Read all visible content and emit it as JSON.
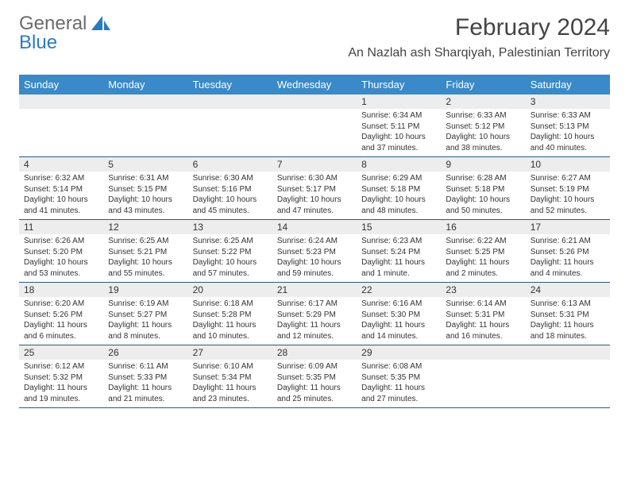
{
  "logo": {
    "text1": "General",
    "text2": "Blue"
  },
  "title": "February 2024",
  "location": "An Nazlah ash Sharqiyah, Palestinian Territory",
  "colors": {
    "header_bg": "#3a89c9",
    "header_text": "#ffffff",
    "date_bg": "#ededed",
    "border": "#2d5a7a",
    "logo_gray": "#6b6b6b",
    "logo_blue": "#2b7bbf"
  },
  "day_names": [
    "Sunday",
    "Monday",
    "Tuesday",
    "Wednesday",
    "Thursday",
    "Friday",
    "Saturday"
  ],
  "weeks": [
    [
      null,
      null,
      null,
      null,
      {
        "d": "1",
        "sr": "6:34 AM",
        "ss": "5:11 PM",
        "dl": "10 hours and 37 minutes."
      },
      {
        "d": "2",
        "sr": "6:33 AM",
        "ss": "5:12 PM",
        "dl": "10 hours and 38 minutes."
      },
      {
        "d": "3",
        "sr": "6:33 AM",
        "ss": "5:13 PM",
        "dl": "10 hours and 40 minutes."
      }
    ],
    [
      {
        "d": "4",
        "sr": "6:32 AM",
        "ss": "5:14 PM",
        "dl": "10 hours and 41 minutes."
      },
      {
        "d": "5",
        "sr": "6:31 AM",
        "ss": "5:15 PM",
        "dl": "10 hours and 43 minutes."
      },
      {
        "d": "6",
        "sr": "6:30 AM",
        "ss": "5:16 PM",
        "dl": "10 hours and 45 minutes."
      },
      {
        "d": "7",
        "sr": "6:30 AM",
        "ss": "5:17 PM",
        "dl": "10 hours and 47 minutes."
      },
      {
        "d": "8",
        "sr": "6:29 AM",
        "ss": "5:18 PM",
        "dl": "10 hours and 48 minutes."
      },
      {
        "d": "9",
        "sr": "6:28 AM",
        "ss": "5:18 PM",
        "dl": "10 hours and 50 minutes."
      },
      {
        "d": "10",
        "sr": "6:27 AM",
        "ss": "5:19 PM",
        "dl": "10 hours and 52 minutes."
      }
    ],
    [
      {
        "d": "11",
        "sr": "6:26 AM",
        "ss": "5:20 PM",
        "dl": "10 hours and 53 minutes."
      },
      {
        "d": "12",
        "sr": "6:25 AM",
        "ss": "5:21 PM",
        "dl": "10 hours and 55 minutes."
      },
      {
        "d": "13",
        "sr": "6:25 AM",
        "ss": "5:22 PM",
        "dl": "10 hours and 57 minutes."
      },
      {
        "d": "14",
        "sr": "6:24 AM",
        "ss": "5:23 PM",
        "dl": "10 hours and 59 minutes."
      },
      {
        "d": "15",
        "sr": "6:23 AM",
        "ss": "5:24 PM",
        "dl": "11 hours and 1 minute."
      },
      {
        "d": "16",
        "sr": "6:22 AM",
        "ss": "5:25 PM",
        "dl": "11 hours and 2 minutes."
      },
      {
        "d": "17",
        "sr": "6:21 AM",
        "ss": "5:26 PM",
        "dl": "11 hours and 4 minutes."
      }
    ],
    [
      {
        "d": "18",
        "sr": "6:20 AM",
        "ss": "5:26 PM",
        "dl": "11 hours and 6 minutes."
      },
      {
        "d": "19",
        "sr": "6:19 AM",
        "ss": "5:27 PM",
        "dl": "11 hours and 8 minutes."
      },
      {
        "d": "20",
        "sr": "6:18 AM",
        "ss": "5:28 PM",
        "dl": "11 hours and 10 minutes."
      },
      {
        "d": "21",
        "sr": "6:17 AM",
        "ss": "5:29 PM",
        "dl": "11 hours and 12 minutes."
      },
      {
        "d": "22",
        "sr": "6:16 AM",
        "ss": "5:30 PM",
        "dl": "11 hours and 14 minutes."
      },
      {
        "d": "23",
        "sr": "6:14 AM",
        "ss": "5:31 PM",
        "dl": "11 hours and 16 minutes."
      },
      {
        "d": "24",
        "sr": "6:13 AM",
        "ss": "5:31 PM",
        "dl": "11 hours and 18 minutes."
      }
    ],
    [
      {
        "d": "25",
        "sr": "6:12 AM",
        "ss": "5:32 PM",
        "dl": "11 hours and 19 minutes."
      },
      {
        "d": "26",
        "sr": "6:11 AM",
        "ss": "5:33 PM",
        "dl": "11 hours and 21 minutes."
      },
      {
        "d": "27",
        "sr": "6:10 AM",
        "ss": "5:34 PM",
        "dl": "11 hours and 23 minutes."
      },
      {
        "d": "28",
        "sr": "6:09 AM",
        "ss": "5:35 PM",
        "dl": "11 hours and 25 minutes."
      },
      {
        "d": "29",
        "sr": "6:08 AM",
        "ss": "5:35 PM",
        "dl": "11 hours and 27 minutes."
      },
      null,
      null
    ]
  ],
  "labels": {
    "sunrise": "Sunrise:",
    "sunset": "Sunset:",
    "daylight": "Daylight:"
  }
}
